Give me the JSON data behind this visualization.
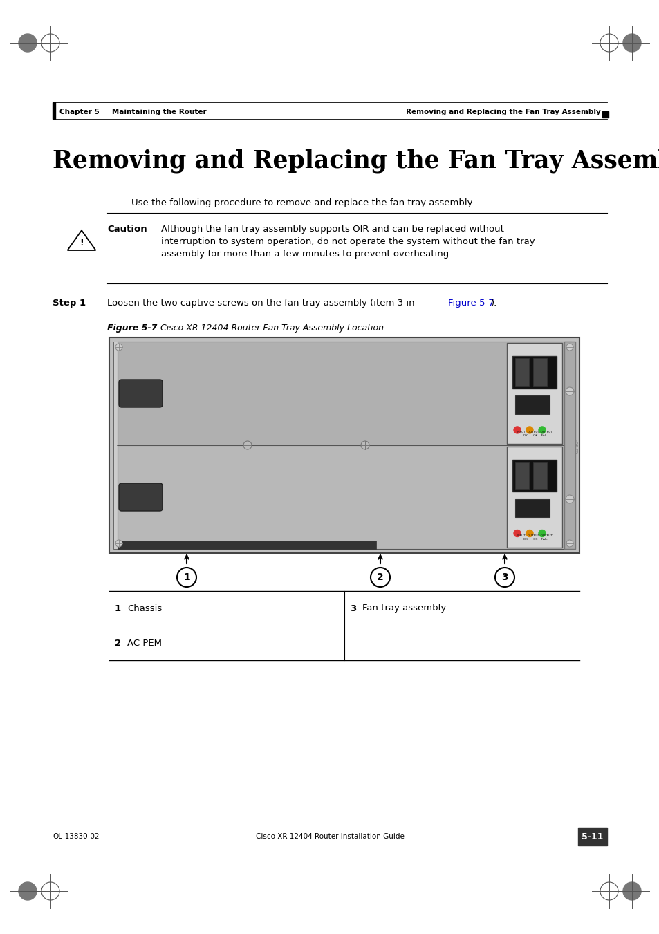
{
  "page_bg": "#ffffff",
  "header_left": "Chapter 5     Maintaining the Router",
  "header_right": "Removing and Replacing the Fan Tray Assembly",
  "title": "Removing and Replacing the Fan Tray Assembly",
  "intro_text": "Use the following procedure to remove and replace the fan tray assembly.",
  "caution_label": "Caution",
  "caution_line1": "Although the fan tray assembly supports OIR and can be replaced without",
  "caution_line2": "interruption to system operation, do not operate the system without the fan tray",
  "caution_line3": "assembly for more than a few minutes to prevent overheating.",
  "step1_label": "Step 1",
  "step1_pre": "Loosen the two captive screws on the fan tray assembly (item 3 in ",
  "step1_link": "Figure 5-7",
  "step1_post": ").",
  "figure_label": "Figure 5-7",
  "figure_title": "      Cisco XR 12404 Router Fan Tray Assembly Location",
  "table_row1_left_num": "1",
  "table_row1_left_label": "Chassis",
  "table_row1_right_num": "3",
  "table_row1_right_label": "Fan tray assembly",
  "table_row2_num": "2",
  "table_row2_label": "AC PEM",
  "footer_left": "OL-13830-02",
  "footer_right": "Cisco XR 12404 Router Installation Guide",
  "page_num": "5-11",
  "link_color": "#0000cc",
  "text_color": "#000000",
  "gray_light": "#d8d8d8",
  "gray_mid": "#b8b8b8",
  "gray_dark": "#888888"
}
